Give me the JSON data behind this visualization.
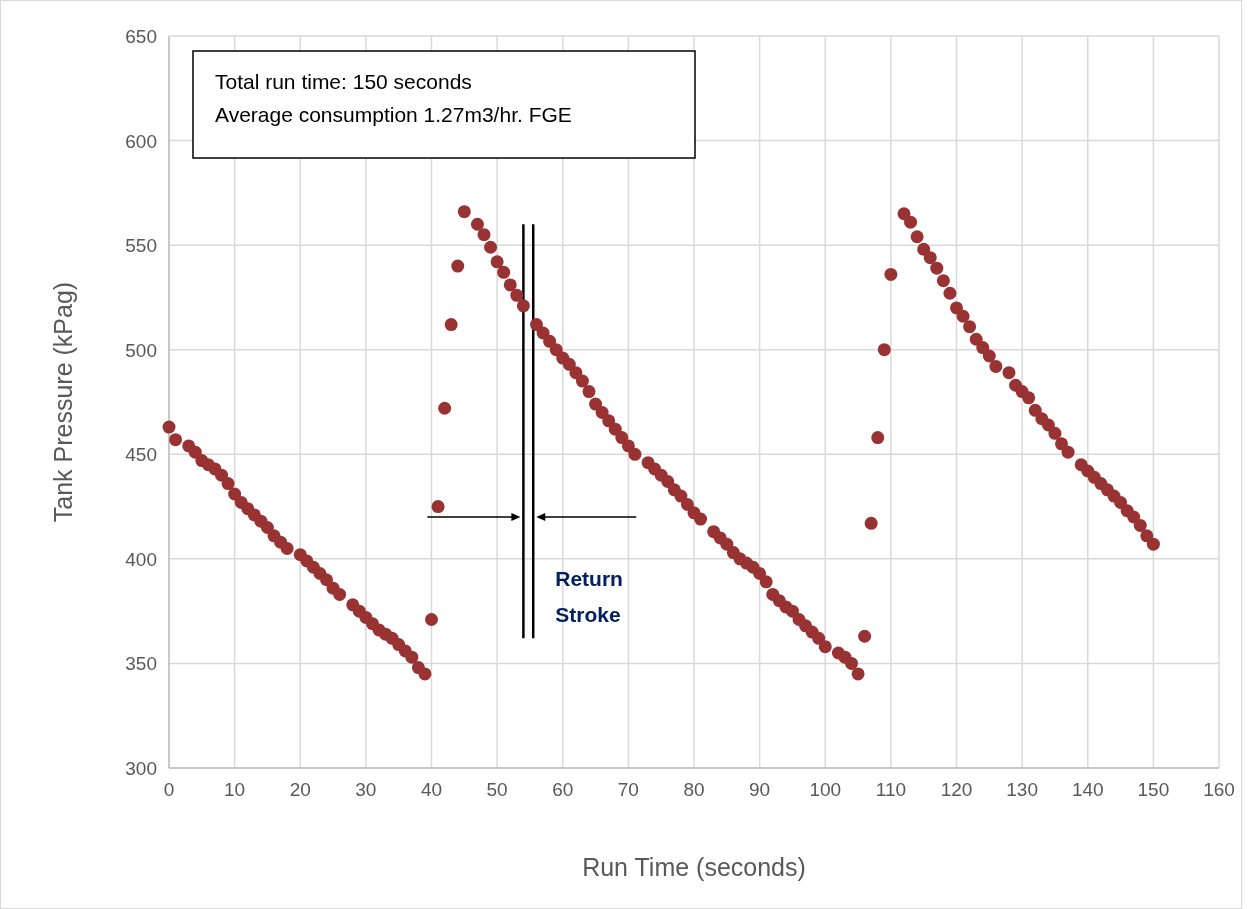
{
  "chart_data": {
    "type": "scatter",
    "xlabel": "Run Time (seconds)",
    "ylabel": "Tank Pressure (kPag)",
    "xlim": [
      0,
      160
    ],
    "xticks": [
      0,
      10,
      20,
      30,
      40,
      50,
      60,
      70,
      80,
      90,
      100,
      110,
      120,
      130,
      140,
      150,
      160
    ],
    "ylim": [
      300,
      650
    ],
    "yticks": [
      300,
      350,
      400,
      450,
      500,
      550,
      600,
      650
    ],
    "grid": true,
    "marker": "circle",
    "series": [
      {
        "color": "#993333",
        "x": [
          0,
          1,
          3,
          4,
          5,
          6,
          7,
          8,
          9,
          10,
          11,
          12,
          13,
          14,
          15,
          16,
          17,
          18,
          20,
          21,
          22,
          23,
          24,
          25,
          26,
          28,
          29,
          30,
          31,
          32,
          33,
          34,
          35,
          36,
          37,
          38,
          39,
          40,
          41,
          42,
          43,
          44,
          45,
          47,
          48,
          49,
          50,
          51,
          52,
          53,
          54,
          56,
          57,
          58,
          59,
          60,
          61,
          62,
          63,
          64,
          65,
          66,
          67,
          68,
          69,
          70,
          71,
          73,
          74,
          75,
          76,
          77,
          78,
          79,
          80,
          81,
          83,
          84,
          85,
          86,
          87,
          88,
          89,
          90,
          91,
          92,
          93,
          94,
          95,
          96,
          97,
          98,
          99,
          100,
          102,
          103,
          104,
          105,
          106,
          107,
          108,
          109,
          110,
          112,
          113,
          114,
          115,
          116,
          117,
          118,
          119,
          120,
          121,
          122,
          123,
          124,
          125,
          126,
          128,
          129,
          130,
          131,
          132,
          133,
          134,
          135,
          136,
          137,
          139,
          140,
          141,
          142,
          143,
          144,
          145,
          146,
          147,
          148,
          149,
          150
        ],
        "values": [
          463,
          457,
          454,
          451,
          447,
          445,
          443,
          440,
          436,
          431,
          427,
          424,
          421,
          418,
          415,
          411,
          408,
          405,
          402,
          399,
          396,
          393,
          390,
          386,
          383,
          378,
          375,
          372,
          369,
          366,
          364,
          362,
          359,
          356,
          353,
          348,
          345,
          371,
          425,
          472,
          512,
          540,
          566,
          560,
          555,
          549,
          542,
          537,
          531,
          526,
          521,
          512,
          508,
          504,
          500,
          496,
          493,
          489,
          485,
          480,
          474,
          470,
          466,
          462,
          458,
          454,
          450,
          446,
          443,
          440,
          437,
          433,
          430,
          426,
          422,
          419,
          413,
          410,
          407,
          403,
          400,
          398,
          396,
          393,
          389,
          383,
          380,
          377,
          375,
          371,
          368,
          365,
          362,
          358,
          355,
          353,
          350,
          345,
          363,
          417,
          458,
          500,
          536,
          565,
          561,
          554,
          548,
          544,
          539,
          533,
          527,
          520,
          516,
          511,
          505,
          501,
          497,
          492,
          489,
          483,
          480,
          477,
          471,
          467,
          464,
          460,
          455,
          451,
          445,
          442,
          439,
          436,
          433,
          430,
          427,
          423,
          420,
          416,
          411,
          407
        ]
      }
    ],
    "ref_lines": [
      {
        "axis": "x",
        "value": 54,
        "color": "#000000"
      },
      {
        "axis": "x",
        "value": 55.5,
        "color": "#000000"
      }
    ],
    "annotations": [
      "Total run time: 150 seconds",
      "Average consumption 1.27m3/hr. FGE",
      "Return Stroke"
    ]
  }
}
